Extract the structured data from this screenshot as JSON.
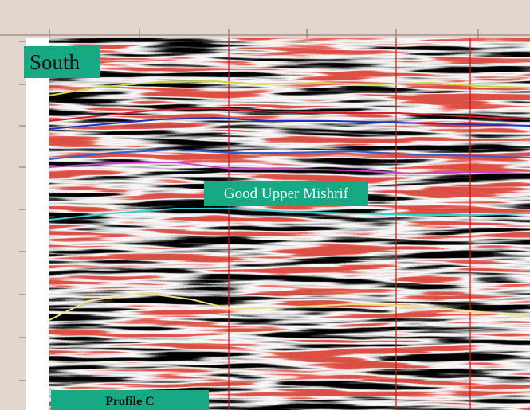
{
  "labels": {
    "south": "South",
    "horizon": "Good Upper Mishrif",
    "profile": "Profile C"
  }
}
